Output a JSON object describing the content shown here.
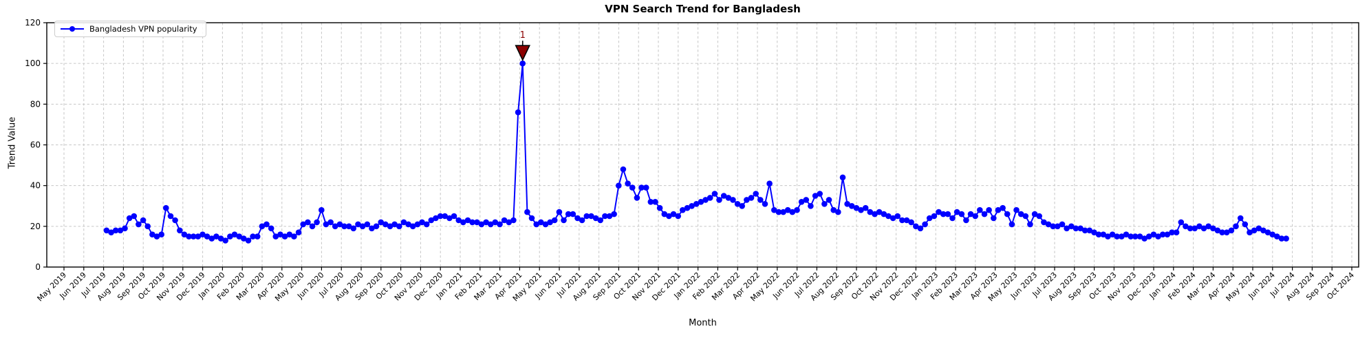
{
  "chart_data": {
    "type": "line",
    "title": "VPN Search Trend for Bangladesh",
    "xlabel": "Month",
    "ylabel": "Trend Value",
    "ylim": [
      0,
      120
    ],
    "yticks": [
      0,
      20,
      40,
      60,
      80,
      100,
      120
    ],
    "grid": true,
    "legend_position": "upper-left",
    "x_tick_labels": [
      "May 2019",
      "Jun 2019",
      "Jul 2019",
      "Aug 2019",
      "Sep 2019",
      "Oct 2019",
      "Nov 2019",
      "Dec 2019",
      "Jan 2020",
      "Feb 2020",
      "Mar 2020",
      "Apr 2020",
      "May 2020",
      "Jun 2020",
      "Jul 2020",
      "Aug 2020",
      "Sep 2020",
      "Oct 2020",
      "Nov 2020",
      "Dec 2020",
      "Jan 2021",
      "Feb 2021",
      "Mar 2021",
      "Apr 2021",
      "May 2021",
      "Jun 2021",
      "Jul 2021",
      "Aug 2021",
      "Sep 2021",
      "Oct 2021",
      "Nov 2021",
      "Dec 2021",
      "Jan 2022",
      "Feb 2022",
      "Mar 2022",
      "Apr 2022",
      "May 2022",
      "Jun 2022",
      "Jul 2022",
      "Aug 2022",
      "Sep 2022",
      "Oct 2022",
      "Nov 2022",
      "Dec 2022",
      "Jan 2023",
      "Feb 2023",
      "Mar 2023",
      "Apr 2023",
      "May 2023",
      "Jun 2023",
      "Jul 2023",
      "Aug 2023",
      "Sep 2023",
      "Oct 2023",
      "Nov 2023",
      "Dec 2023",
      "Jan 2024",
      "Feb 2024",
      "Mar 2024",
      "Apr 2024",
      "May 2024",
      "Jun 2024",
      "Jul 2024",
      "Aug 2024",
      "Sep 2024",
      "Oct 2024"
    ],
    "series": [
      {
        "name": "Bangladesh VPN popularity",
        "color": "#0000ff",
        "marker": "circle",
        "cadence": "weekly",
        "start_month_index": 2.15,
        "week_step_months": 0.23077,
        "values": [
          18,
          17,
          18,
          18,
          19,
          24,
          25,
          21,
          23,
          20,
          16,
          15,
          16,
          29,
          25,
          23,
          18,
          16,
          15,
          15,
          15,
          16,
          15,
          14,
          15,
          14,
          13,
          15,
          16,
          15,
          14,
          13,
          15,
          15,
          20,
          21,
          19,
          15,
          16,
          15,
          16,
          15,
          17,
          21,
          22,
          20,
          22,
          28,
          21,
          22,
          20,
          21,
          20,
          20,
          19,
          21,
          20,
          21,
          19,
          20,
          22,
          21,
          20,
          21,
          20,
          22,
          21,
          20,
          21,
          22,
          21,
          23,
          24,
          25,
          25,
          24,
          25,
          23,
          22,
          23,
          22,
          22,
          21,
          22,
          21,
          22,
          21,
          23,
          22,
          23,
          76,
          100,
          27,
          24,
          21,
          22,
          21,
          22,
          23,
          27,
          23,
          26,
          26,
          24,
          23,
          25,
          25,
          24,
          23,
          25,
          25,
          26,
          40,
          48,
          41,
          39,
          34,
          39,
          39,
          32,
          32,
          29,
          26,
          25,
          26,
          25,
          28,
          29,
          30,
          31,
          32,
          33,
          34,
          36,
          33,
          35,
          34,
          33,
          31,
          30,
          33,
          34,
          36,
          33,
          31,
          41,
          28,
          27,
          27,
          28,
          27,
          28,
          32,
          33,
          30,
          35,
          36,
          31,
          33,
          28,
          27,
          44,
          31,
          30,
          29,
          28,
          29,
          27,
          26,
          27,
          26,
          25,
          24,
          25,
          23,
          23,
          22,
          20,
          19,
          21,
          24,
          25,
          27,
          26,
          26,
          24,
          27,
          26,
          23,
          26,
          25,
          28,
          26,
          28,
          24,
          28,
          29,
          26,
          21,
          28,
          26,
          25,
          21,
          26,
          25,
          22,
          21,
          20,
          20,
          21,
          19,
          20,
          19,
          19,
          18,
          18,
          17,
          16,
          16,
          15,
          16,
          15,
          15,
          16,
          15,
          15,
          15,
          14,
          15,
          16,
          15,
          16,
          16,
          17,
          17,
          22,
          20,
          19,
          19,
          20,
          19,
          20,
          19,
          18,
          17,
          17,
          18,
          20,
          24,
          21,
          17,
          18,
          19,
          18,
          17,
          16,
          15,
          14,
          14
        ]
      }
    ],
    "annotation": {
      "label": "1",
      "on_value": 100,
      "text_color": "#8b0000",
      "marker": "triangle-down",
      "marker_color": "#8b0000",
      "marker_edge_color": "#000000"
    }
  }
}
